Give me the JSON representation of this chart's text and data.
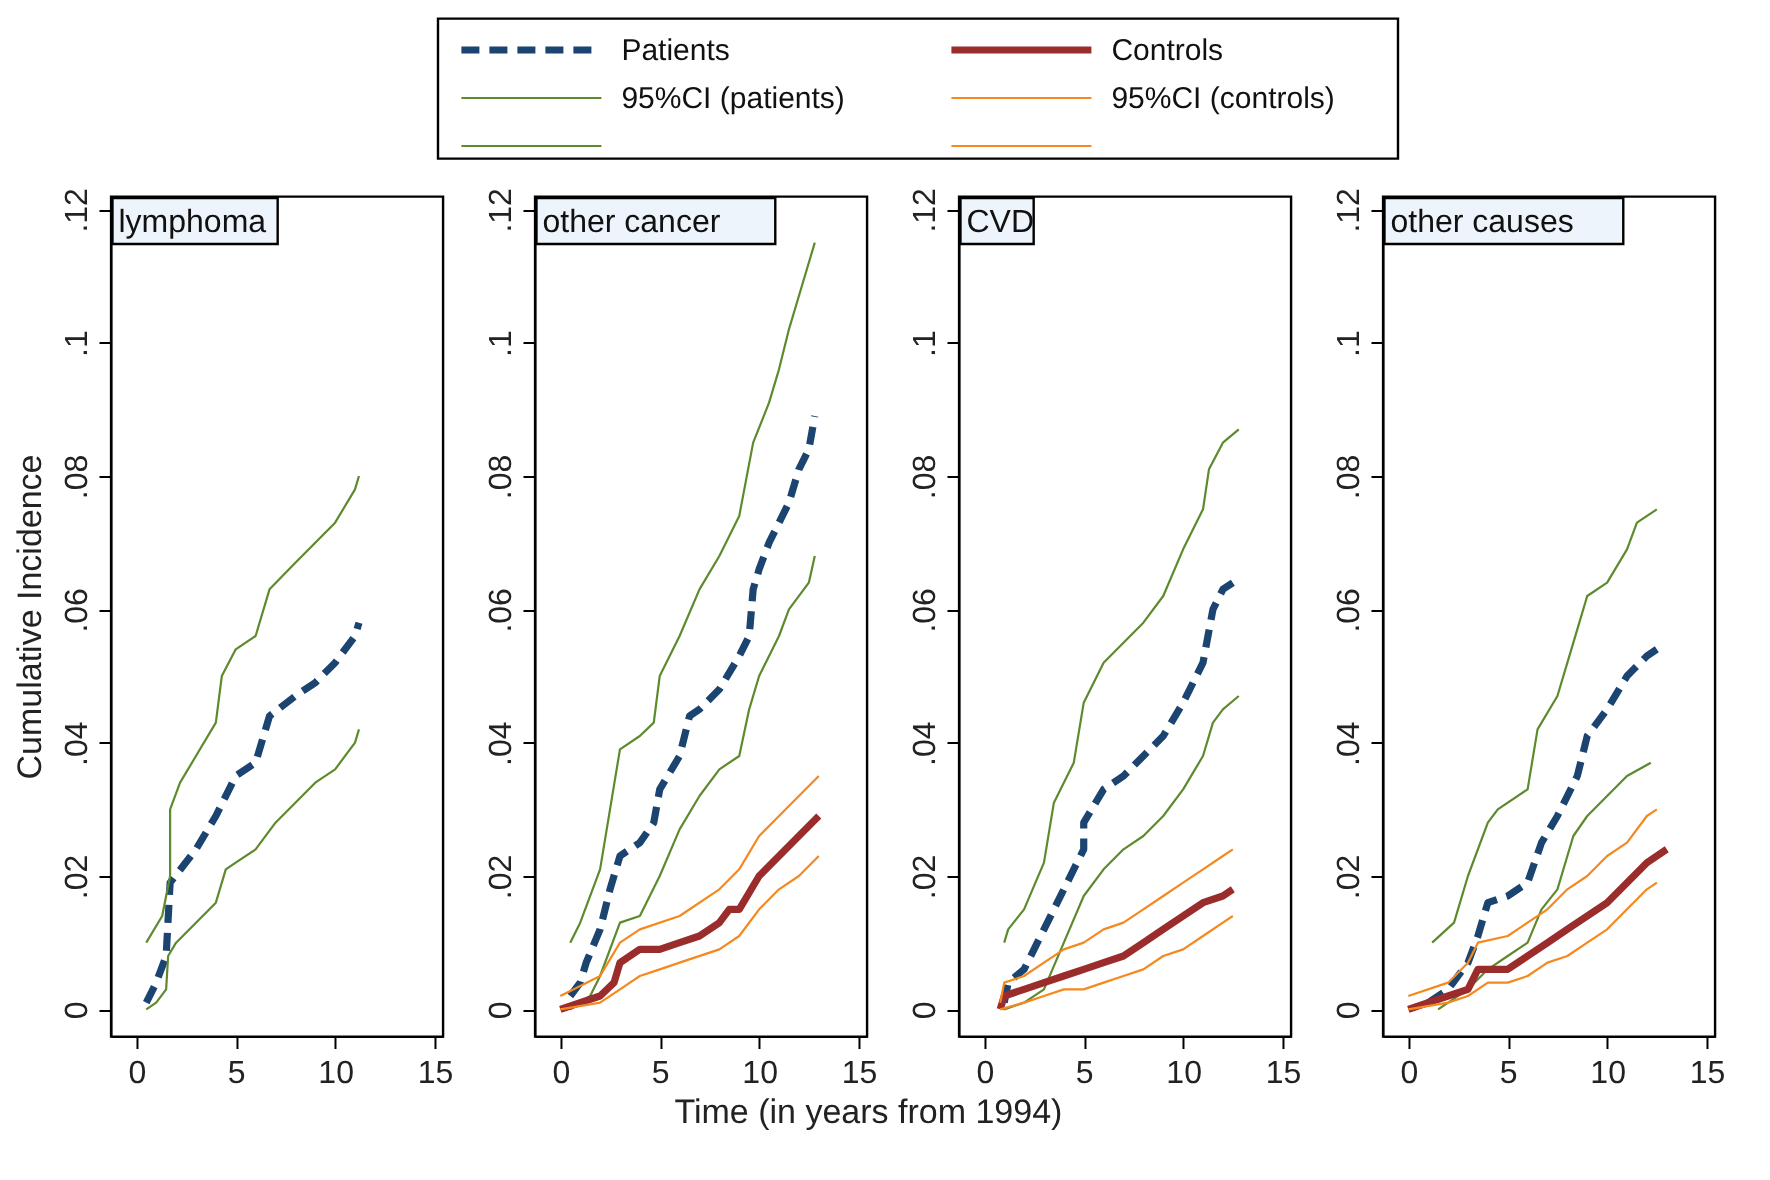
{
  "chart_data": [
    {
      "type": "line",
      "title": "lymphoma",
      "ylabel": "Cumulative Incidence",
      "xlim": [
        -1.3,
        15.4
      ],
      "ylim": [
        -0.004,
        0.122
      ],
      "xticks": [
        0,
        5,
        10,
        15
      ],
      "yticks": [
        0,
        {
          "value": 0.02,
          "label": ".02"
        },
        {
          "value": 0.04,
          "label": ".04"
        },
        {
          "value": 0.06,
          "label": ".06"
        },
        {
          "value": 0.08,
          "label": ".08"
        },
        {
          "value": 0.1,
          "label": ".1"
        },
        {
          "value": 0.12,
          "label": ".12"
        }
      ],
      "grid": false,
      "legend": false,
      "series": [
        {
          "color": "#1b4470",
          "line_style": "dashed",
          "x": [
            0.5,
            1,
            1.5,
            1.7,
            3,
            4,
            5,
            6,
            6.7,
            8,
            9,
            10,
            11,
            11.2
          ],
          "values": [
            0.001,
            0.004,
            0.008,
            0.019,
            0.024,
            0.029,
            0.035,
            0.037,
            0.044,
            0.047,
            0.049,
            0.052,
            0.056,
            0.058
          ]
        },
        {
          "color": "#5e8a2e",
          "x": [
            0.5,
            1.3,
            1.7,
            1.7,
            2.2,
            3,
            4,
            4.3,
            5,
            6,
            6.7,
            8,
            9,
            10,
            11,
            11.2
          ],
          "values": [
            0.01,
            0.014,
            0.02,
            0.03,
            0.034,
            0.038,
            0.043,
            0.05,
            0.054,
            0.056,
            0.063,
            0.067,
            0.07,
            0.073,
            0.078,
            0.08
          ]
        },
        {
          "color": "#5e8a2e",
          "x": [
            0.5,
            1,
            1.5,
            1.6,
            2,
            3,
            4,
            4.5,
            5,
            6,
            7,
            8,
            9,
            10,
            11,
            11.2
          ],
          "values": [
            0,
            0.001,
            0.003,
            0.008,
            0.01,
            0.013,
            0.016,
            0.021,
            0.022,
            0.024,
            0.028,
            0.031,
            0.034,
            0.036,
            0.04,
            0.042
          ]
        }
      ]
    },
    {
      "type": "line",
      "title": "other cancer",
      "xlabel": "Time (in years from 1994)",
      "xlim": [
        -1.3,
        15.4
      ],
      "ylim": [
        -0.004,
        0.122
      ],
      "xticks": [
        0,
        5,
        10,
        15
      ],
      "yticks": [
        0,
        {
          "value": 0.02,
          "label": ".02"
        },
        {
          "value": 0.04,
          "label": ".04"
        },
        {
          "value": 0.06,
          "label": ".06"
        },
        {
          "value": 0.08,
          "label": ".08"
        },
        {
          "value": 0.1,
          "label": ".1"
        },
        {
          "value": 0.12,
          "label": ".12"
        }
      ],
      "grid": false,
      "legend": "top",
      "series": [
        {
          "name": "Patients",
          "color": "#1b4470",
          "line_style": "dashed",
          "x": [
            0.5,
            1,
            1.3,
            2,
            2.5,
            3,
            4,
            4.7,
            5,
            6,
            6.5,
            7,
            8,
            9,
            9.5,
            9.7,
            10,
            10.5,
            11.5,
            12,
            12.5,
            12.8
          ],
          "values": [
            0.002,
            0.004,
            0.007,
            0.012,
            0.018,
            0.023,
            0.025,
            0.028,
            0.033,
            0.038,
            0.044,
            0.045,
            0.048,
            0.053,
            0.056,
            0.063,
            0.066,
            0.07,
            0.076,
            0.081,
            0.084,
            0.089
          ]
        },
        {
          "name": "95%CI (patients)",
          "color": "#5e8a2e",
          "x": [
            0.5,
            1,
            2,
            2.5,
            3,
            4,
            4.7,
            5,
            6,
            7,
            8,
            9,
            9.7,
            10.5,
            11,
            11.5,
            12,
            12.8
          ],
          "values": [
            0.01,
            0.013,
            0.021,
            0.03,
            0.039,
            0.041,
            0.043,
            0.05,
            0.056,
            0.063,
            0.068,
            0.074,
            0.085,
            0.091,
            0.096,
            0.102,
            0.107,
            0.115
          ]
        },
        {
          "color": "#5e8a2e",
          "x": [
            0.5,
            1.5,
            2,
            3,
            4,
            5,
            6,
            7,
            8,
            9,
            9.5,
            10,
            11,
            11.5,
            12.5,
            12.8
          ],
          "values": [
            0,
            0.002,
            0.005,
            0.013,
            0.014,
            0.02,
            0.027,
            0.032,
            0.036,
            0.038,
            0.045,
            0.05,
            0.056,
            0.06,
            0.064,
            0.068
          ]
        },
        {
          "name": "Controls",
          "color": "#9b2c2c",
          "line_style": "solid",
          "x": [
            0,
            1,
            2,
            2.7,
            3,
            4,
            5,
            6,
            7,
            8,
            8.5,
            9,
            10,
            11,
            12,
            13
          ],
          "values": [
            0,
            0.001,
            0.002,
            0.004,
            0.007,
            0.009,
            0.009,
            0.01,
            0.011,
            0.013,
            0.015,
            0.015,
            0.02,
            0.023,
            0.026,
            0.029
          ]
        },
        {
          "name": "95%CI (controls)",
          "color": "#f5891f",
          "x": [
            0,
            2,
            3,
            4,
            6,
            8,
            9,
            10,
            11,
            12,
            13
          ],
          "values": [
            0.002,
            0.005,
            0.01,
            0.012,
            0.014,
            0.018,
            0.021,
            0.026,
            0.029,
            0.032,
            0.035
          ]
        },
        {
          "color": "#f5891f",
          "x": [
            0,
            2,
            3,
            4,
            5,
            6,
            8,
            9,
            10,
            11,
            12,
            13
          ],
          "values": [
            0,
            0.001,
            0.003,
            0.005,
            0.006,
            0.007,
            0.009,
            0.011,
            0.015,
            0.018,
            0.02,
            0.023
          ]
        }
      ]
    },
    {
      "type": "line",
      "title": "CVD",
      "xlim": [
        -1.3,
        15.4
      ],
      "ylim": [
        -0.004,
        0.122
      ],
      "xticks": [
        0,
        5,
        10,
        15
      ],
      "yticks": [
        0,
        {
          "value": 0.02,
          "label": ".02"
        },
        {
          "value": 0.04,
          "label": ".04"
        },
        {
          "value": 0.06,
          "label": ".06"
        },
        {
          "value": 0.08,
          "label": ".08"
        },
        {
          "value": 0.1,
          "label": ".1"
        },
        {
          "value": 0.12,
          "label": ".12"
        }
      ],
      "grid": false,
      "legend": false,
      "series": [
        {
          "color": "#1b4470",
          "line_style": "dashed",
          "x": [
            1,
            1.2,
            2,
            3,
            4,
            5,
            5,
            6,
            7,
            8,
            9,
            10,
            11,
            11.5,
            12,
            12.5
          ],
          "values": [
            0.001,
            0.004,
            0.006,
            0.012,
            0.018,
            0.024,
            0.028,
            0.033,
            0.035,
            0.038,
            0.041,
            0.046,
            0.052,
            0.06,
            0.063,
            0.064
          ]
        },
        {
          "color": "#5e8a2e",
          "x": [
            1,
            1.2,
            2,
            3,
            3.5,
            4.5,
            5,
            6,
            7,
            8,
            9,
            10,
            11,
            11.3,
            12,
            12.8
          ],
          "values": [
            0.01,
            0.012,
            0.015,
            0.022,
            0.031,
            0.037,
            0.046,
            0.052,
            0.055,
            0.058,
            0.062,
            0.069,
            0.075,
            0.081,
            0.085,
            0.087
          ]
        },
        {
          "color": "#5e8a2e",
          "x": [
            1,
            2,
            3,
            4,
            5,
            6,
            7,
            8,
            9,
            10,
            11,
            11.5,
            12,
            12.8
          ],
          "values": [
            0,
            0.001,
            0.003,
            0.01,
            0.017,
            0.021,
            0.024,
            0.026,
            0.029,
            0.033,
            0.038,
            0.043,
            0.045,
            0.047
          ]
        },
        {
          "color": "#9b2c2c",
          "line_style": "solid",
          "x": [
            0.8,
            1,
            2,
            3,
            4,
            5,
            6,
            7,
            8,
            9,
            10,
            11,
            12,
            12.5
          ],
          "values": [
            0,
            0.002,
            0.003,
            0.004,
            0.005,
            0.006,
            0.007,
            0.008,
            0.01,
            0.012,
            0.014,
            0.016,
            0.017,
            0.018
          ]
        },
        {
          "color": "#f5891f",
          "x": [
            0.8,
            1,
            2,
            3,
            4,
            5,
            6,
            7,
            8,
            9,
            10,
            11,
            12,
            12.5
          ],
          "values": [
            0.001,
            0.004,
            0.005,
            0.007,
            0.009,
            0.01,
            0.012,
            0.013,
            0.015,
            0.017,
            0.019,
            0.021,
            0.023,
            0.024
          ]
        },
        {
          "color": "#f5891f",
          "x": [
            0.8,
            2,
            3,
            4,
            5,
            6,
            7,
            8,
            9,
            10,
            11,
            12,
            12.5
          ],
          "values": [
            0,
            0.001,
            0.002,
            0.003,
            0.003,
            0.004,
            0.005,
            0.006,
            0.008,
            0.009,
            0.011,
            0.013,
            0.014
          ]
        }
      ]
    },
    {
      "type": "line",
      "title": "other causes",
      "xlim": [
        -1.3,
        15.4
      ],
      "ylim": [
        -0.004,
        0.122
      ],
      "xticks": [
        0,
        5,
        10,
        15
      ],
      "yticks": [
        0,
        {
          "value": 0.02,
          "label": ".02"
        },
        {
          "value": 0.04,
          "label": ".04"
        },
        {
          "value": 0.06,
          "label": ".06"
        },
        {
          "value": 0.08,
          "label": ".08"
        },
        {
          "value": 0.1,
          "label": ".1"
        },
        {
          "value": 0.12,
          "label": ".12"
        }
      ],
      "grid": false,
      "legend": false,
      "series": [
        {
          "color": "#1b4470",
          "line_style": "dashed",
          "x": [
            1,
            2,
            3,
            3.5,
            4,
            5,
            6,
            6.7,
            7.5,
            8.5,
            9,
            10,
            11,
            12,
            12.5
          ],
          "values": [
            0.001,
            0.003,
            0.007,
            0.011,
            0.016,
            0.017,
            0.019,
            0.025,
            0.029,
            0.035,
            0.041,
            0.045,
            0.05,
            0.053,
            0.054
          ]
        },
        {
          "color": "#5e8a2e",
          "x": [
            1.2,
            2.3,
            3,
            4,
            4.5,
            6,
            6.5,
            7.5,
            8.5,
            9,
            10,
            11,
            11.5,
            12.5
          ],
          "values": [
            0.01,
            0.013,
            0.02,
            0.028,
            0.03,
            0.033,
            0.042,
            0.047,
            0.057,
            0.062,
            0.064,
            0.069,
            0.073,
            0.075
          ]
        },
        {
          "color": "#5e8a2e",
          "x": [
            1.5,
            2,
            3,
            4,
            5,
            6,
            6.7,
            7.5,
            8.3,
            9,
            10,
            11,
            12.2
          ],
          "values": [
            0,
            0.001,
            0.003,
            0.006,
            0.008,
            0.01,
            0.015,
            0.018,
            0.026,
            0.029,
            0.032,
            0.035,
            0.037
          ]
        },
        {
          "color": "#9b2c2c",
          "line_style": "solid",
          "x": [
            0,
            1,
            2,
            3,
            3.5,
            5,
            6,
            7,
            8,
            9,
            10,
            11,
            12,
            13
          ],
          "values": [
            0,
            0.001,
            0.002,
            0.003,
            0.006,
            0.006,
            0.008,
            0.01,
            0.012,
            0.014,
            0.016,
            0.019,
            0.022,
            0.024
          ]
        },
        {
          "color": "#f5891f",
          "x": [
            0,
            2,
            3,
            3.5,
            5,
            6,
            7,
            8,
            9,
            10,
            11,
            12,
            12.5
          ],
          "values": [
            0.002,
            0.004,
            0.007,
            0.01,
            0.011,
            0.013,
            0.015,
            0.018,
            0.02,
            0.023,
            0.025,
            0.029,
            0.03
          ]
        },
        {
          "color": "#f5891f",
          "x": [
            0,
            2,
            3,
            4,
            5,
            6,
            7,
            8,
            9,
            10,
            11,
            12,
            12.5
          ],
          "values": [
            0,
            0.001,
            0.002,
            0.004,
            0.004,
            0.005,
            0.007,
            0.008,
            0.01,
            0.012,
            0.015,
            0.018,
            0.019
          ]
        }
      ]
    }
  ]
}
